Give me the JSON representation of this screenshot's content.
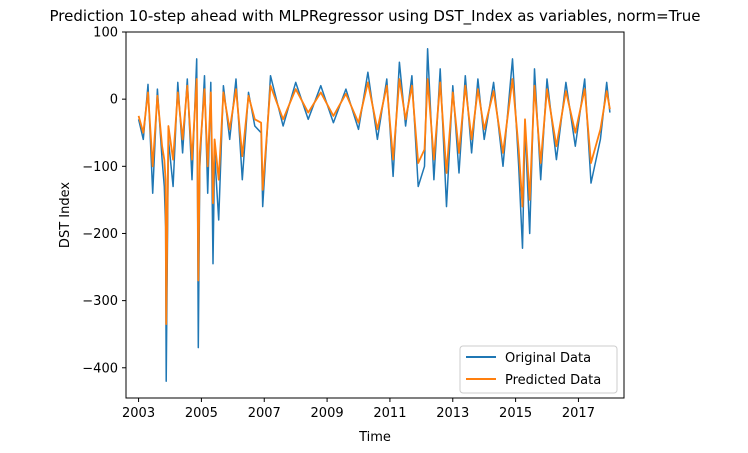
{
  "chart_data": {
    "type": "line",
    "title": "Prediction 10-step ahead with MLPRegressor using DST_Index as variables, norm=True",
    "xlabel": "Time",
    "ylabel": "DST Index",
    "xlim": [
      2002.6,
      2018.45
    ],
    "ylim": [
      -445,
      100
    ],
    "xticks": [
      2003,
      2005,
      2007,
      2009,
      2011,
      2013,
      2015,
      2017
    ],
    "xtick_labels": [
      "2003",
      "2005",
      "2007",
      "2009",
      "2011",
      "2013",
      "2015",
      "2017"
    ],
    "yticks": [
      100,
      0,
      -100,
      -200,
      -300,
      -400
    ],
    "ytick_labels": [
      "100",
      "0",
      "−100",
      "−200",
      "−300",
      "−400"
    ],
    "legend": {
      "position": "lower right",
      "entries": [
        "Original Data",
        "Predicted Data"
      ]
    },
    "series": [
      {
        "name": "Original Data",
        "color": "#1f77b4",
        "x": [
          2003.0,
          2003.15,
          2003.3,
          2003.45,
          2003.6,
          2003.75,
          2003.82,
          2003.86,
          2003.88,
          2003.95,
          2004.1,
          2004.25,
          2004.4,
          2004.55,
          2004.7,
          2004.85,
          2004.87,
          2004.9,
          2004.95,
          2005.1,
          2005.2,
          2005.3,
          2005.37,
          2005.42,
          2005.55,
          2005.7,
          2005.9,
          2006.1,
          2006.3,
          2006.5,
          2006.7,
          2006.9,
          2006.95,
          2007.2,
          2007.6,
          2008.0,
          2008.4,
          2008.8,
          2009.2,
          2009.6,
          2010.0,
          2010.3,
          2010.6,
          2010.9,
          2011.1,
          2011.3,
          2011.5,
          2011.7,
          2011.9,
          2012.1,
          2012.2,
          2012.4,
          2012.6,
          2012.8,
          2013.0,
          2013.2,
          2013.4,
          2013.6,
          2013.8,
          2014.0,
          2014.3,
          2014.6,
          2014.9,
          2015.1,
          2015.22,
          2015.3,
          2015.45,
          2015.6,
          2015.8,
          2016.0,
          2016.3,
          2016.6,
          2016.9,
          2017.2,
          2017.4,
          2017.7,
          2017.9,
          2018.0
        ],
        "y": [
          -30,
          -60,
          22,
          -140,
          15,
          -90,
          -130,
          -190,
          -420,
          -60,
          -130,
          25,
          -80,
          30,
          -120,
          60,
          -70,
          -370,
          -100,
          35,
          -140,
          25,
          -245,
          -80,
          -180,
          20,
          -60,
          30,
          -120,
          10,
          -40,
          -50,
          -160,
          35,
          -40,
          25,
          -30,
          20,
          -35,
          15,
          -45,
          40,
          -60,
          30,
          -115,
          55,
          -40,
          35,
          -130,
          -100,
          75,
          -120,
          45,
          -160,
          20,
          -110,
          35,
          -80,
          30,
          -60,
          25,
          -100,
          60,
          -100,
          -222,
          -40,
          -200,
          45,
          -120,
          30,
          -90,
          25,
          -70,
          30,
          -125,
          -60,
          25,
          -20
        ]
      },
      {
        "name": "Predicted Data",
        "color": "#ff7f0e",
        "x": [
          2003.0,
          2003.15,
          2003.3,
          2003.45,
          2003.6,
          2003.75,
          2003.82,
          2003.86,
          2003.88,
          2003.95,
          2004.1,
          2004.25,
          2004.4,
          2004.55,
          2004.7,
          2004.85,
          2004.87,
          2004.9,
          2004.95,
          2005.1,
          2005.2,
          2005.3,
          2005.37,
          2005.42,
          2005.55,
          2005.7,
          2005.9,
          2006.1,
          2006.3,
          2006.5,
          2006.7,
          2006.9,
          2006.95,
          2007.2,
          2007.6,
          2008.0,
          2008.4,
          2008.8,
          2009.2,
          2009.6,
          2010.0,
          2010.3,
          2010.6,
          2010.9,
          2011.1,
          2011.3,
          2011.5,
          2011.7,
          2011.9,
          2012.1,
          2012.2,
          2012.4,
          2012.6,
          2012.8,
          2013.0,
          2013.2,
          2013.4,
          2013.6,
          2013.8,
          2014.0,
          2014.3,
          2014.6,
          2014.9,
          2015.1,
          2015.22,
          2015.3,
          2015.45,
          2015.6,
          2015.8,
          2016.0,
          2016.3,
          2016.6,
          2016.9,
          2017.2,
          2017.4,
          2017.7,
          2017.9,
          2018.0
        ],
        "y": [
          -25,
          -50,
          10,
          -100,
          5,
          -70,
          -90,
          -120,
          -335,
          -40,
          -90,
          10,
          -60,
          20,
          -90,
          30,
          -60,
          -270,
          -80,
          15,
          -100,
          10,
          -155,
          -60,
          -120,
          10,
          -45,
          15,
          -85,
          5,
          -30,
          -35,
          -135,
          20,
          -30,
          15,
          -20,
          10,
          -25,
          8,
          -35,
          25,
          -45,
          20,
          -90,
          30,
          -30,
          20,
          -95,
          -75,
          30,
          -90,
          25,
          -110,
          10,
          -80,
          20,
          -60,
          15,
          -45,
          12,
          -80,
          30,
          -75,
          -160,
          -30,
          -150,
          20,
          -95,
          15,
          -70,
          12,
          -50,
          15,
          -95,
          -45,
          12,
          -15
        ]
      }
    ]
  }
}
